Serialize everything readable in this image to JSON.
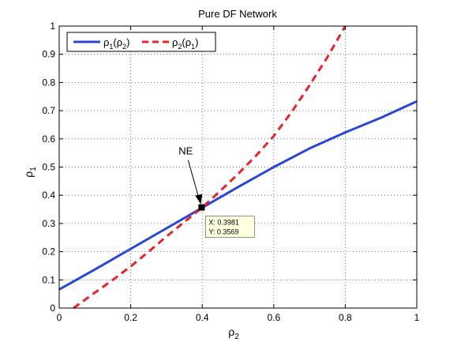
{
  "chart_data": {
    "type": "line",
    "title": "Pure DF Network",
    "xlabel": "ρ",
    "xlabel_sub": "2",
    "ylabel": "ρ",
    "ylabel_sub": "1",
    "xlim": [
      0,
      1
    ],
    "ylim": [
      0,
      1
    ],
    "xticks": [
      "0",
      "0.2",
      "0.4",
      "0.6",
      "0.8",
      "1"
    ],
    "yticks": [
      "0",
      "0.1",
      "0.2",
      "0.3",
      "0.4",
      "0.5",
      "0.6",
      "0.7",
      "0.8",
      "0.9",
      "1"
    ],
    "grid": "dotted",
    "legend_position": "top-left",
    "series": [
      {
        "name_main": "ρ",
        "name_sub1": "1",
        "name_mid": "(ρ",
        "name_sub2": "2",
        "name_end": ")",
        "color": "#2a46d6",
        "style": "solid",
        "x": [
          0,
          0.1,
          0.2,
          0.3,
          0.4,
          0.5,
          0.6,
          0.7,
          0.8,
          0.9,
          1.0
        ],
        "y": [
          0.066,
          0.137,
          0.21,
          0.283,
          0.356,
          0.429,
          0.5,
          0.566,
          0.623,
          0.675,
          0.733
        ]
      },
      {
        "name_main": "ρ",
        "name_sub1": "2",
        "name_mid": "(ρ",
        "name_sub2": "1",
        "name_end": ")",
        "color": "#e8242a",
        "style": "dashed",
        "x": [
          0.04,
          0.1,
          0.15,
          0.2,
          0.25,
          0.3,
          0.35,
          0.4,
          0.45,
          0.5,
          0.55,
          0.6,
          0.65,
          0.7,
          0.75,
          0.8
        ],
        "y": [
          0.0,
          0.055,
          0.1,
          0.148,
          0.2,
          0.254,
          0.305,
          0.357,
          0.415,
          0.475,
          0.54,
          0.61,
          0.695,
          0.79,
          0.89,
          1.0
        ]
      }
    ],
    "annotation": {
      "text": "NE",
      "x": 0.3981,
      "y": 0.3569
    },
    "datatip": {
      "x": 0.3981,
      "y": 0.3569,
      "line1": "X: 0.3981",
      "line2": "Y: 0.3569"
    }
  }
}
